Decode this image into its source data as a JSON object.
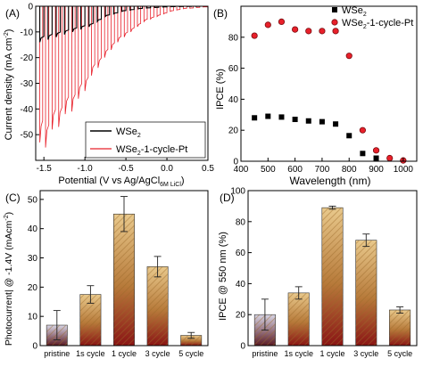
{
  "colors": {
    "wse2": "#000000",
    "pt": "#e8202a",
    "bar_top": "#e9c98c",
    "bar_mid": "#b77a3a",
    "bar_bottom": "#8a1414",
    "pristine_top": "#d8d6e6",
    "pristine_bottom": "#5a1a24",
    "hatch": "#9b6a2a"
  },
  "chart_data": [
    {
      "panel_label": "(A)",
      "type": "line",
      "xlabel": "Potential (V vs Ag/AgCl",
      "xlabel_sub": "6M LiCl",
      "xlabel_end": ")",
      "ylabel": "Current density (mA cm",
      "ylabel_sup": "-2",
      "ylabel_end": ")",
      "xlim": [
        -1.6,
        0.5
      ],
      "ylim": [
        -60,
        0
      ],
      "xticks": [
        -1.5,
        -1.0,
        -0.5,
        0.0,
        0.5
      ],
      "xtick_labels": [
        "-1.5",
        "-1.0",
        "-0.5",
        "0.0",
        "0.5"
      ],
      "yticks": [
        -50,
        -40,
        -30,
        -20,
        -10,
        0
      ],
      "ytick_labels": [
        "-50",
        "-40",
        "-30",
        "-20",
        "-10",
        "0"
      ],
      "legend": [
        {
          "name": "WSe",
          "sub": "2"
        },
        {
          "name": "WSe",
          "sub": "2",
          "rest": "-1-cycle-Pt"
        }
      ],
      "legend_position": "bottom-right",
      "series": [
        {
          "name": "WSe2",
          "chopped": true,
          "x": [
            -1.55,
            -1.45,
            -1.35,
            -1.25,
            -1.15,
            -1.05,
            -0.95,
            -0.85,
            -0.75,
            -0.65,
            -0.55,
            -0.45,
            -0.35,
            -0.25,
            -0.15,
            -0.05,
            0.05,
            0.15,
            0.25,
            0.35,
            0.45
          ],
          "light": [
            -14.0,
            -13.0,
            -12.0,
            -11.0,
            -10.0,
            -9.0,
            -8.0,
            -6.0,
            -4.0,
            -3.0,
            -2.0,
            -1.5,
            -1.0,
            -0.7,
            -0.5,
            -0.3,
            -0.2,
            -0.15,
            -0.1,
            -0.05,
            0.0
          ]
        },
        {
          "name": "WSe2-1-cycle-Pt",
          "chopped": true,
          "x": [
            -1.55,
            -1.48,
            -1.4,
            -1.32,
            -1.24,
            -1.16,
            -1.08,
            -1.0,
            -0.92,
            -0.84,
            -0.76,
            -0.68,
            -0.6,
            -0.52,
            -0.44,
            -0.36,
            -0.28,
            -0.2,
            -0.12,
            -0.04,
            0.04,
            0.12,
            0.2,
            0.28,
            0.36,
            0.44
          ],
          "light": [
            -53.0,
            -55.0,
            -48.0,
            -47.0,
            -42.0,
            -41.0,
            -36.0,
            -33.0,
            -27.0,
            -24.0,
            -20.0,
            -17.0,
            -14.0,
            -12.0,
            -10.0,
            -8.0,
            -6.0,
            -5.0,
            -4.0,
            -3.0,
            -2.0,
            -1.5,
            -1.0,
            -0.8,
            -0.5,
            -0.3
          ]
        }
      ]
    },
    {
      "panel_label": "(B)",
      "type": "scatter",
      "xlabel": "Wavelength (nm)",
      "ylabel": "IPCE (%)",
      "xlim": [
        400,
        1050
      ],
      "ylim": [
        0,
        100
      ],
      "xticks": [
        400,
        500,
        600,
        700,
        800,
        900,
        1000
      ],
      "xtick_labels": [
        "400",
        "500",
        "600",
        "700",
        "800",
        "900",
        "1000"
      ],
      "yticks": [
        0,
        20,
        40,
        60,
        80
      ],
      "ytick_labels": [
        "0",
        "20",
        "40",
        "60",
        "80"
      ],
      "legend": [
        {
          "name": "WSe",
          "sub": "2"
        },
        {
          "name": "WSe",
          "sub": "2",
          "rest": "-1-cycle-Pt"
        }
      ],
      "legend_position": "top-right",
      "series": [
        {
          "name": "WSe2",
          "marker": "square",
          "x": [
            450,
            500,
            550,
            600,
            650,
            700,
            750,
            800,
            850,
            900
          ],
          "y": [
            28,
            29,
            28.5,
            27,
            26,
            25.5,
            24,
            16.5,
            5,
            2
          ]
        },
        {
          "name": "WSe2-1-cycle-Pt",
          "marker": "circle",
          "x": [
            450,
            500,
            550,
            600,
            650,
            700,
            750,
            800,
            850,
            900,
            950,
            1000
          ],
          "y": [
            81,
            88,
            90,
            85,
            84,
            84,
            84,
            68,
            20,
            7,
            2,
            0.5
          ]
        }
      ]
    },
    {
      "panel_label": "(C)",
      "type": "bar",
      "ylabel": "Photocurrent| @ -1.4V (mAcm",
      "ylabel_sup": "-2",
      "ylabel_end": ")",
      "categories": [
        "pristine",
        "1s cycle",
        "1 cycle",
        "3 cycle",
        "5 cycle"
      ],
      "values": [
        7,
        17.5,
        45,
        27,
        3.5
      ],
      "errors": [
        5,
        3,
        6,
        3.5,
        1
      ],
      "ylim": [
        0,
        53
      ],
      "yticks": [
        0,
        10,
        20,
        30,
        40,
        50
      ],
      "ytick_labels": [
        "0",
        "10",
        "20",
        "30",
        "40",
        "50"
      ]
    },
    {
      "panel_label": "(D)",
      "type": "bar",
      "ylabel": "IPCE @ 550 nm (%)",
      "categories": [
        "pristine",
        "1s cycle",
        "1 cycle",
        "3 cycle",
        "5 cycle"
      ],
      "values": [
        20,
        34,
        89,
        68,
        23
      ],
      "errors": [
        10,
        4,
        1,
        4,
        2
      ],
      "ylim": [
        0,
        100
      ],
      "yticks": [
        0,
        20,
        40,
        60,
        80,
        100
      ],
      "ytick_labels": [
        "0",
        "20",
        "40",
        "60",
        "80",
        "100"
      ]
    }
  ]
}
